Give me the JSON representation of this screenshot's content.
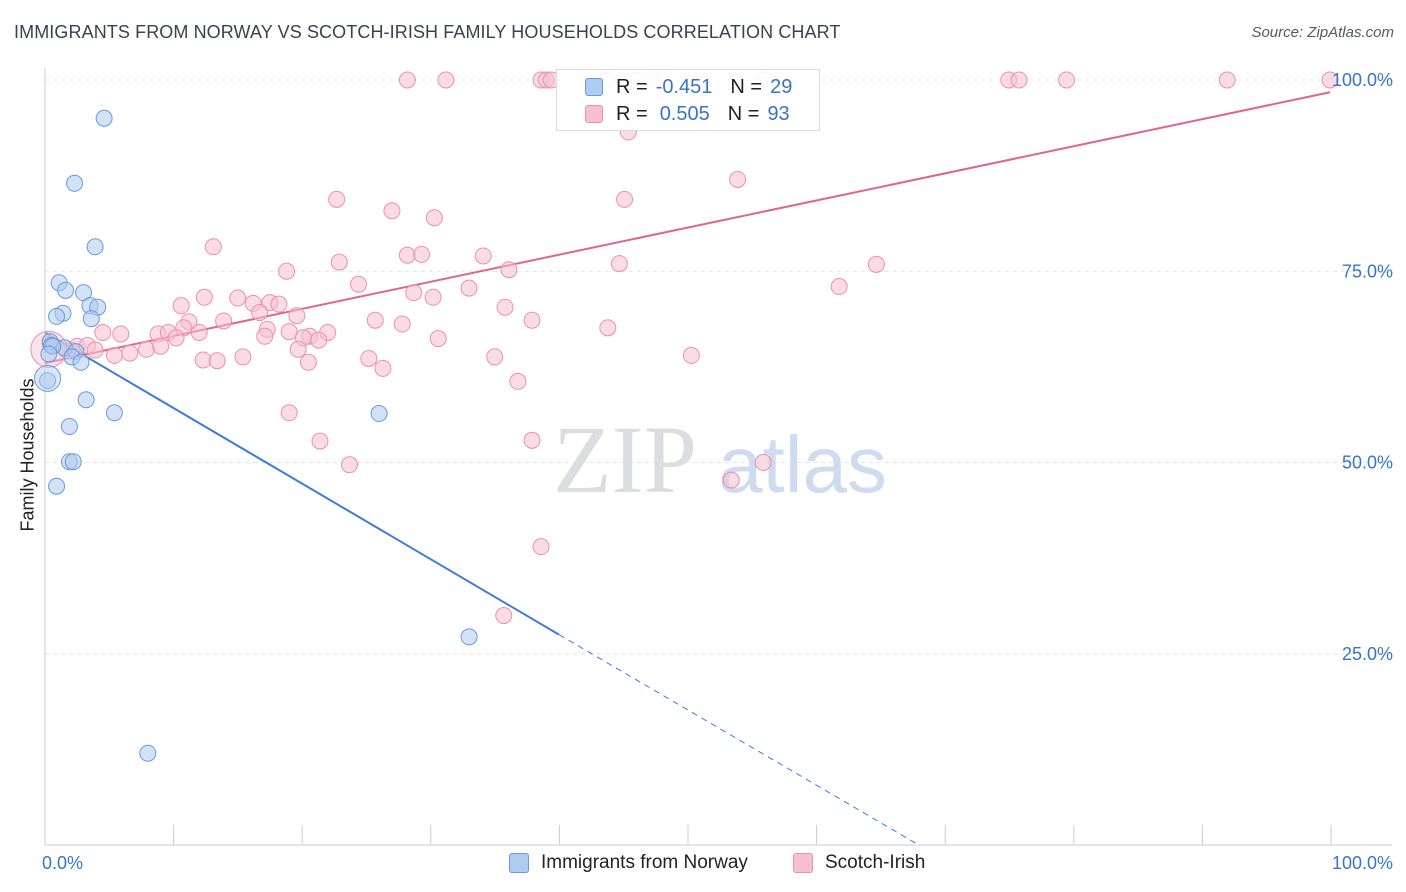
{
  "header": {
    "title": "IMMIGRANTS FROM NORWAY VS SCOTCH-IRISH FAMILY HOUSEHOLDS CORRELATION CHART",
    "source": "Source: ZipAtlas.com"
  },
  "watermark": {
    "zip": "ZIP",
    "atlas": "atlas"
  },
  "legend_top": {
    "rows": [
      {
        "r_label": "R =",
        "r_value": "-0.451",
        "n_label": "N =",
        "n_value": "29"
      },
      {
        "r_label": "R =",
        "r_value": "0.505",
        "n_label": "N =",
        "n_value": "93"
      }
    ]
  },
  "legend_bottom": {
    "items": [
      {
        "label": "Immigrants from Norway"
      },
      {
        "label": "Scotch-Irish"
      }
    ]
  },
  "colors": {
    "norway_fill": "#aecbf0",
    "norway_stroke": "#6b9ad8",
    "norway_line": "#3b7dd8",
    "scotch_fill": "#f7c0d2",
    "scotch_stroke": "#ea90b0",
    "scotch_line": "#e0648e",
    "axis_text": "#3a74c7",
    "grid": "#e2e4ea"
  },
  "chart_data": {
    "type": "scatter",
    "title": "IMMIGRANTS FROM NORWAY VS SCOTCH-IRISH FAMILY HOUSEHOLDS CORRELATION CHART",
    "xlabel": "",
    "ylabel": "Family Households",
    "xlim": [
      0,
      100
    ],
    "ylim": [
      0,
      100
    ],
    "x_tick_labels": [
      "0.0%",
      "100.0%"
    ],
    "y_ticks": [
      25,
      50,
      75,
      100
    ],
    "y_tick_labels": [
      "25.0%",
      "50.0%",
      "75.0%",
      "100.0%"
    ],
    "grid": true,
    "legend_position": "bottom",
    "series": [
      {
        "name": "Immigrants from Norway",
        "color": "#aecbf0",
        "points": [
          [
            4.6,
            95.0
          ],
          [
            2.3,
            86.5
          ],
          [
            3.9,
            78.2
          ],
          [
            1.1,
            73.5
          ],
          [
            1.6,
            72.5
          ],
          [
            3.0,
            72.2
          ],
          [
            3.5,
            70.5
          ],
          [
            4.1,
            70.3
          ],
          [
            1.4,
            69.5
          ],
          [
            0.9,
            69.1
          ],
          [
            3.6,
            68.8
          ],
          [
            0.4,
            65.8
          ],
          [
            0.5,
            65.3
          ],
          [
            1.5,
            65.0
          ],
          [
            0.6,
            65.2
          ],
          [
            2.4,
            64.5
          ],
          [
            2.1,
            63.8
          ],
          [
            2.8,
            63.1
          ],
          [
            0.2,
            60.7
          ],
          [
            3.2,
            58.2
          ],
          [
            5.4,
            56.5
          ],
          [
            26.0,
            56.4
          ],
          [
            1.9,
            54.7
          ],
          [
            1.9,
            50.1
          ],
          [
            2.2,
            50.1
          ],
          [
            0.9,
            46.9
          ],
          [
            33.0,
            27.2
          ],
          [
            8.0,
            12.0
          ],
          [
            0.3,
            64.2
          ]
        ]
      },
      {
        "name": "Scotch-Irish",
        "color": "#f7c0d2",
        "points": [
          [
            28.2,
            100
          ],
          [
            31.2,
            100
          ],
          [
            38.6,
            100
          ],
          [
            39.0,
            100
          ],
          [
            39.4,
            100
          ],
          [
            43.7,
            100
          ],
          [
            46.0,
            100
          ],
          [
            47.3,
            100
          ],
          [
            48.1,
            100
          ],
          [
            56.0,
            100
          ],
          [
            75.0,
            100
          ],
          [
            75.8,
            100
          ],
          [
            79.5,
            100
          ],
          [
            92.0,
            100
          ],
          [
            100.0,
            100
          ],
          [
            45.4,
            93.2
          ],
          [
            53.9,
            87.0
          ],
          [
            22.7,
            84.4
          ],
          [
            45.1,
            84.4
          ],
          [
            27.0,
            82.9
          ],
          [
            30.3,
            82.0
          ],
          [
            13.1,
            78.2
          ],
          [
            28.2,
            77.1
          ],
          [
            29.3,
            77.2
          ],
          [
            34.1,
            77.0
          ],
          [
            22.9,
            76.2
          ],
          [
            44.7,
            76.0
          ],
          [
            64.7,
            75.9
          ],
          [
            18.8,
            75.0
          ],
          [
            36.1,
            75.2
          ],
          [
            24.4,
            73.3
          ],
          [
            33.0,
            72.8
          ],
          [
            61.8,
            73.0
          ],
          [
            28.7,
            72.2
          ],
          [
            12.4,
            71.6
          ],
          [
            30.2,
            71.6
          ],
          [
            15.0,
            71.5
          ],
          [
            17.5,
            70.9
          ],
          [
            16.2,
            70.8
          ],
          [
            18.2,
            70.7
          ],
          [
            10.6,
            70.5
          ],
          [
            35.8,
            70.3
          ],
          [
            16.7,
            69.6
          ],
          [
            19.6,
            69.2
          ],
          [
            13.9,
            68.5
          ],
          [
            11.2,
            68.4
          ],
          [
            25.7,
            68.6
          ],
          [
            37.9,
            68.6
          ],
          [
            27.8,
            68.1
          ],
          [
            10.8,
            67.6
          ],
          [
            17.3,
            67.4
          ],
          [
            5.9,
            66.8
          ],
          [
            12.0,
            67.0
          ],
          [
            19.0,
            67.1
          ],
          [
            22.0,
            67.0
          ],
          [
            8.8,
            66.8
          ],
          [
            9.6,
            67.0
          ],
          [
            4.5,
            67.0
          ],
          [
            10.2,
            66.3
          ],
          [
            17.1,
            66.5
          ],
          [
            20.6,
            66.5
          ],
          [
            20.1,
            66.3
          ],
          [
            21.3,
            66.0
          ],
          [
            30.6,
            66.2
          ],
          [
            43.8,
            67.6
          ],
          [
            0.4,
            65.5
          ],
          [
            2.5,
            65.2
          ],
          [
            3.3,
            65.3
          ],
          [
            2.1,
            64.6
          ],
          [
            1.7,
            64.6
          ],
          [
            7.9,
            64.8
          ],
          [
            3.9,
            64.7
          ],
          [
            9.0,
            65.2
          ],
          [
            19.7,
            64.8
          ],
          [
            6.6,
            64.3
          ],
          [
            5.4,
            64.0
          ],
          [
            15.4,
            63.8
          ],
          [
            25.2,
            63.6
          ],
          [
            35.0,
            63.8
          ],
          [
            50.3,
            64.0
          ],
          [
            12.3,
            63.4
          ],
          [
            13.4,
            63.3
          ],
          [
            20.5,
            63.1
          ],
          [
            26.3,
            62.3
          ],
          [
            36.8,
            60.6
          ],
          [
            19.0,
            56.5
          ],
          [
            21.4,
            52.8
          ],
          [
            37.9,
            52.9
          ],
          [
            23.7,
            49.7
          ],
          [
            55.9,
            50.0
          ],
          [
            53.4,
            47.7
          ],
          [
            38.6,
            39.0
          ],
          [
            35.7,
            30.0
          ]
        ]
      }
    ],
    "trend_lines": [
      {
        "series": "Immigrants from Norway",
        "x0": 0,
        "y0": 67.0,
        "x1": 40,
        "y1": 27.5,
        "dashed_to_x": 68,
        "dashed_to_y": 0
      },
      {
        "series": "Scotch-Irish",
        "x0": 0,
        "y0": 63.0,
        "x1": 100,
        "y1": 98.4
      }
    ]
  }
}
